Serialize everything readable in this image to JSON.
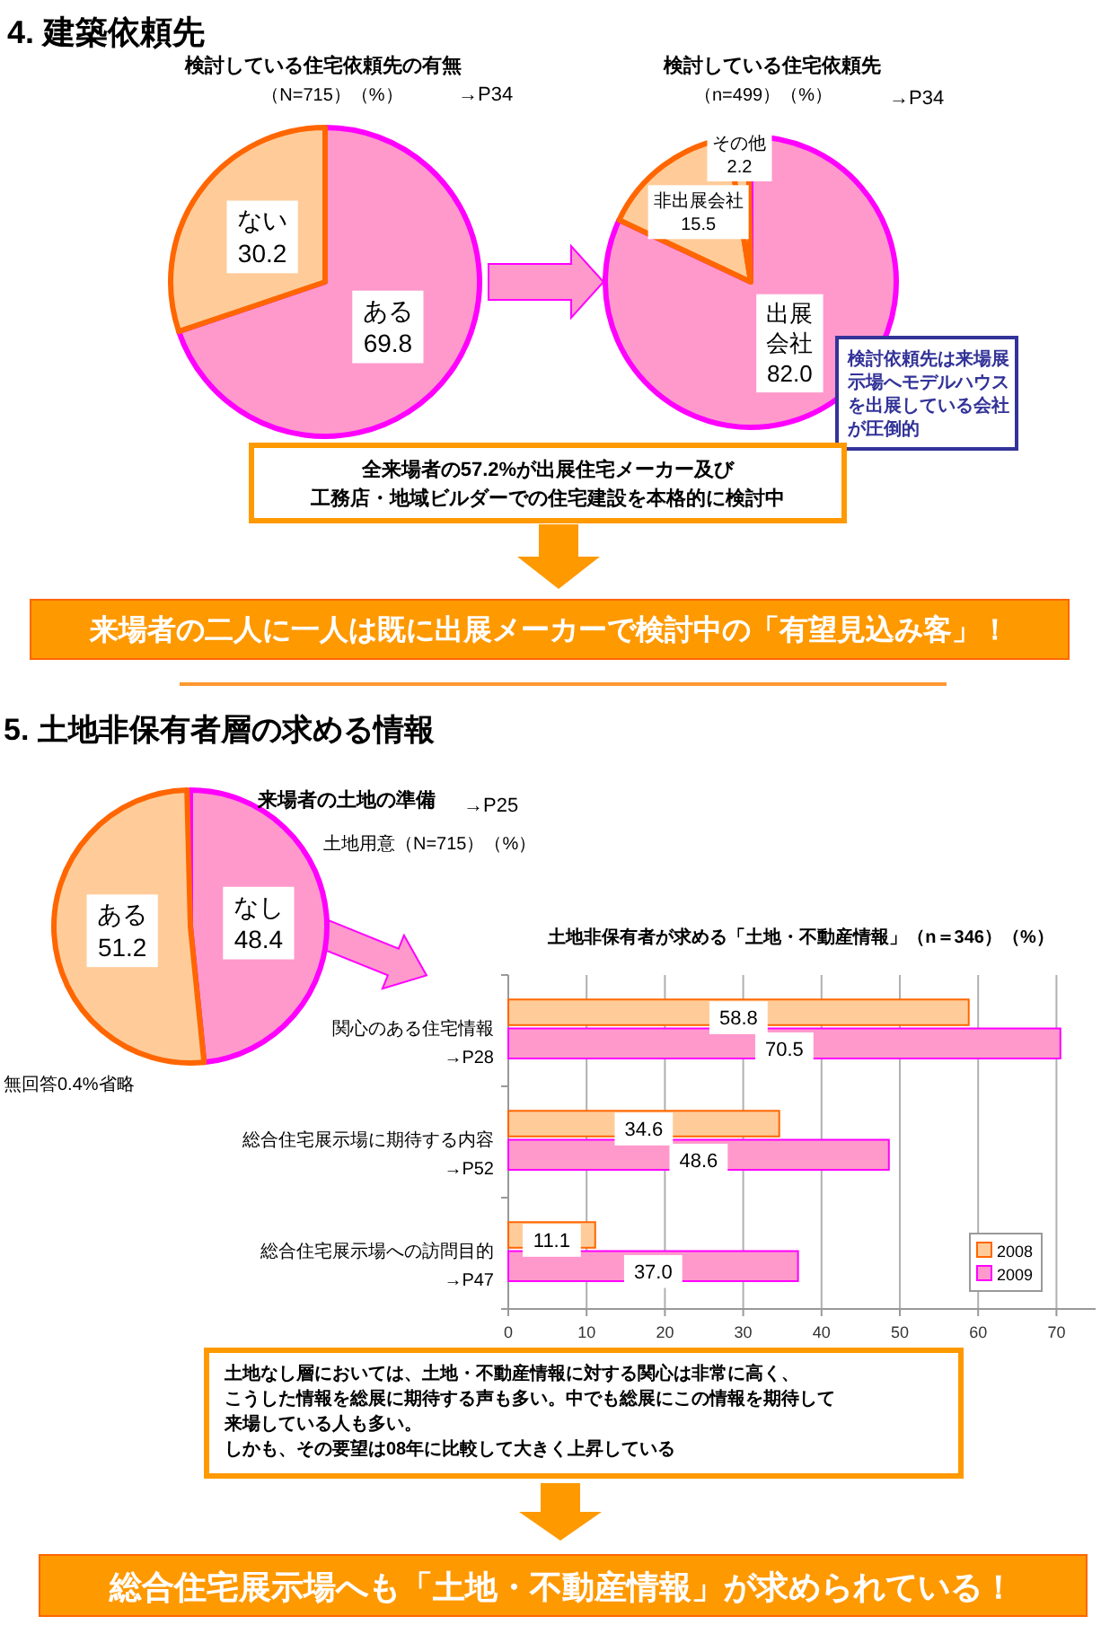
{
  "chart_data": [
    {
      "type": "pie",
      "title": "検討している住宅依頼先の有無",
      "subtitle": "（N=715）（%）",
      "categories": [
        "ある",
        "ない"
      ],
      "values": [
        69.8,
        30.2
      ],
      "value_labels": [
        "69.8",
        "30.2"
      ],
      "colors": [
        "#ff99cc",
        "#ffcc99"
      ],
      "annotations": [
        "4. 建築依頼先",
        "→P34"
      ]
    },
    {
      "type": "pie",
      "title": "検討している住宅依頼先",
      "subtitle": "（n=499）（%）",
      "categories": [
        "出展会社",
        "非出展会社",
        "その他"
      ],
      "values": [
        82.0,
        15.5,
        2.2
      ],
      "value_labels": [
        "82.0",
        "15.5",
        "2.2"
      ],
      "colors": [
        "#ff99cc",
        "#ffcc99",
        "#ffcc99"
      ],
      "annotations": [
        "→P34",
        "検討依頼先は来場展示場へモデルハウスを出展している会社が圧倒的",
        "全来場者の57.2%が出展住宅メーカー及び工務店・地域ビルダーでの住宅建設を本格的に検討中",
        "来場者の二人に一人は既に出展メーカーで検討中の「有望見込み客」！"
      ]
    },
    {
      "type": "pie",
      "title": "来場者の土地の準備",
      "subtitle": "土地用意（N=715）（%）",
      "categories": [
        "なし",
        "ある"
      ],
      "values": [
        48.4,
        51.2
      ],
      "value_labels": [
        "48.4",
        "51.2"
      ],
      "colors": [
        "#ff99cc",
        "#ffcc99"
      ],
      "annotations": [
        "5.  土地非保有者層の求める情報",
        "→P25",
        "無回答0.4%省略"
      ]
    },
    {
      "type": "bar",
      "orientation": "horizontal",
      "title": "土地非保有者が求める「土地・不動産情報」（n＝346）（%）",
      "categories": [
        "関心のある住宅情報\n→P28",
        "総合住宅展示場に期待する内容\n→P52",
        "総合住宅展示場への訪問目的\n→P47"
      ],
      "series": [
        {
          "name": "2008",
          "color": "#ffcc99",
          "values": [
            58.8,
            34.6,
            11.1
          ],
          "value_labels": [
            "58.8",
            "34.6",
            "11.1"
          ]
        },
        {
          "name": "2009",
          "color": "#ff99cc",
          "values": [
            70.5,
            48.6,
            37.0
          ],
          "value_labels": [
            "70.5",
            "48.6",
            "37.0"
          ]
        }
      ],
      "xlim": [
        0,
        75
      ],
      "xticks": [
        0,
        10,
        20,
        30,
        40,
        50,
        60,
        70
      ],
      "grid": "x",
      "legend": "bottom right",
      "annotations": [
        "土地なし層においては、土地・不動産情報に対する関心は非常に高く、こうした情報を総展に期待する声も多い。中でも総展にこの情報を期待して来場している人も多い。",
        "しかも、その要望は08年に比較して大きく上昇している",
        "総合住宅展示場へも「土地・不動産情報」が求められている！"
      ]
    }
  ]
}
